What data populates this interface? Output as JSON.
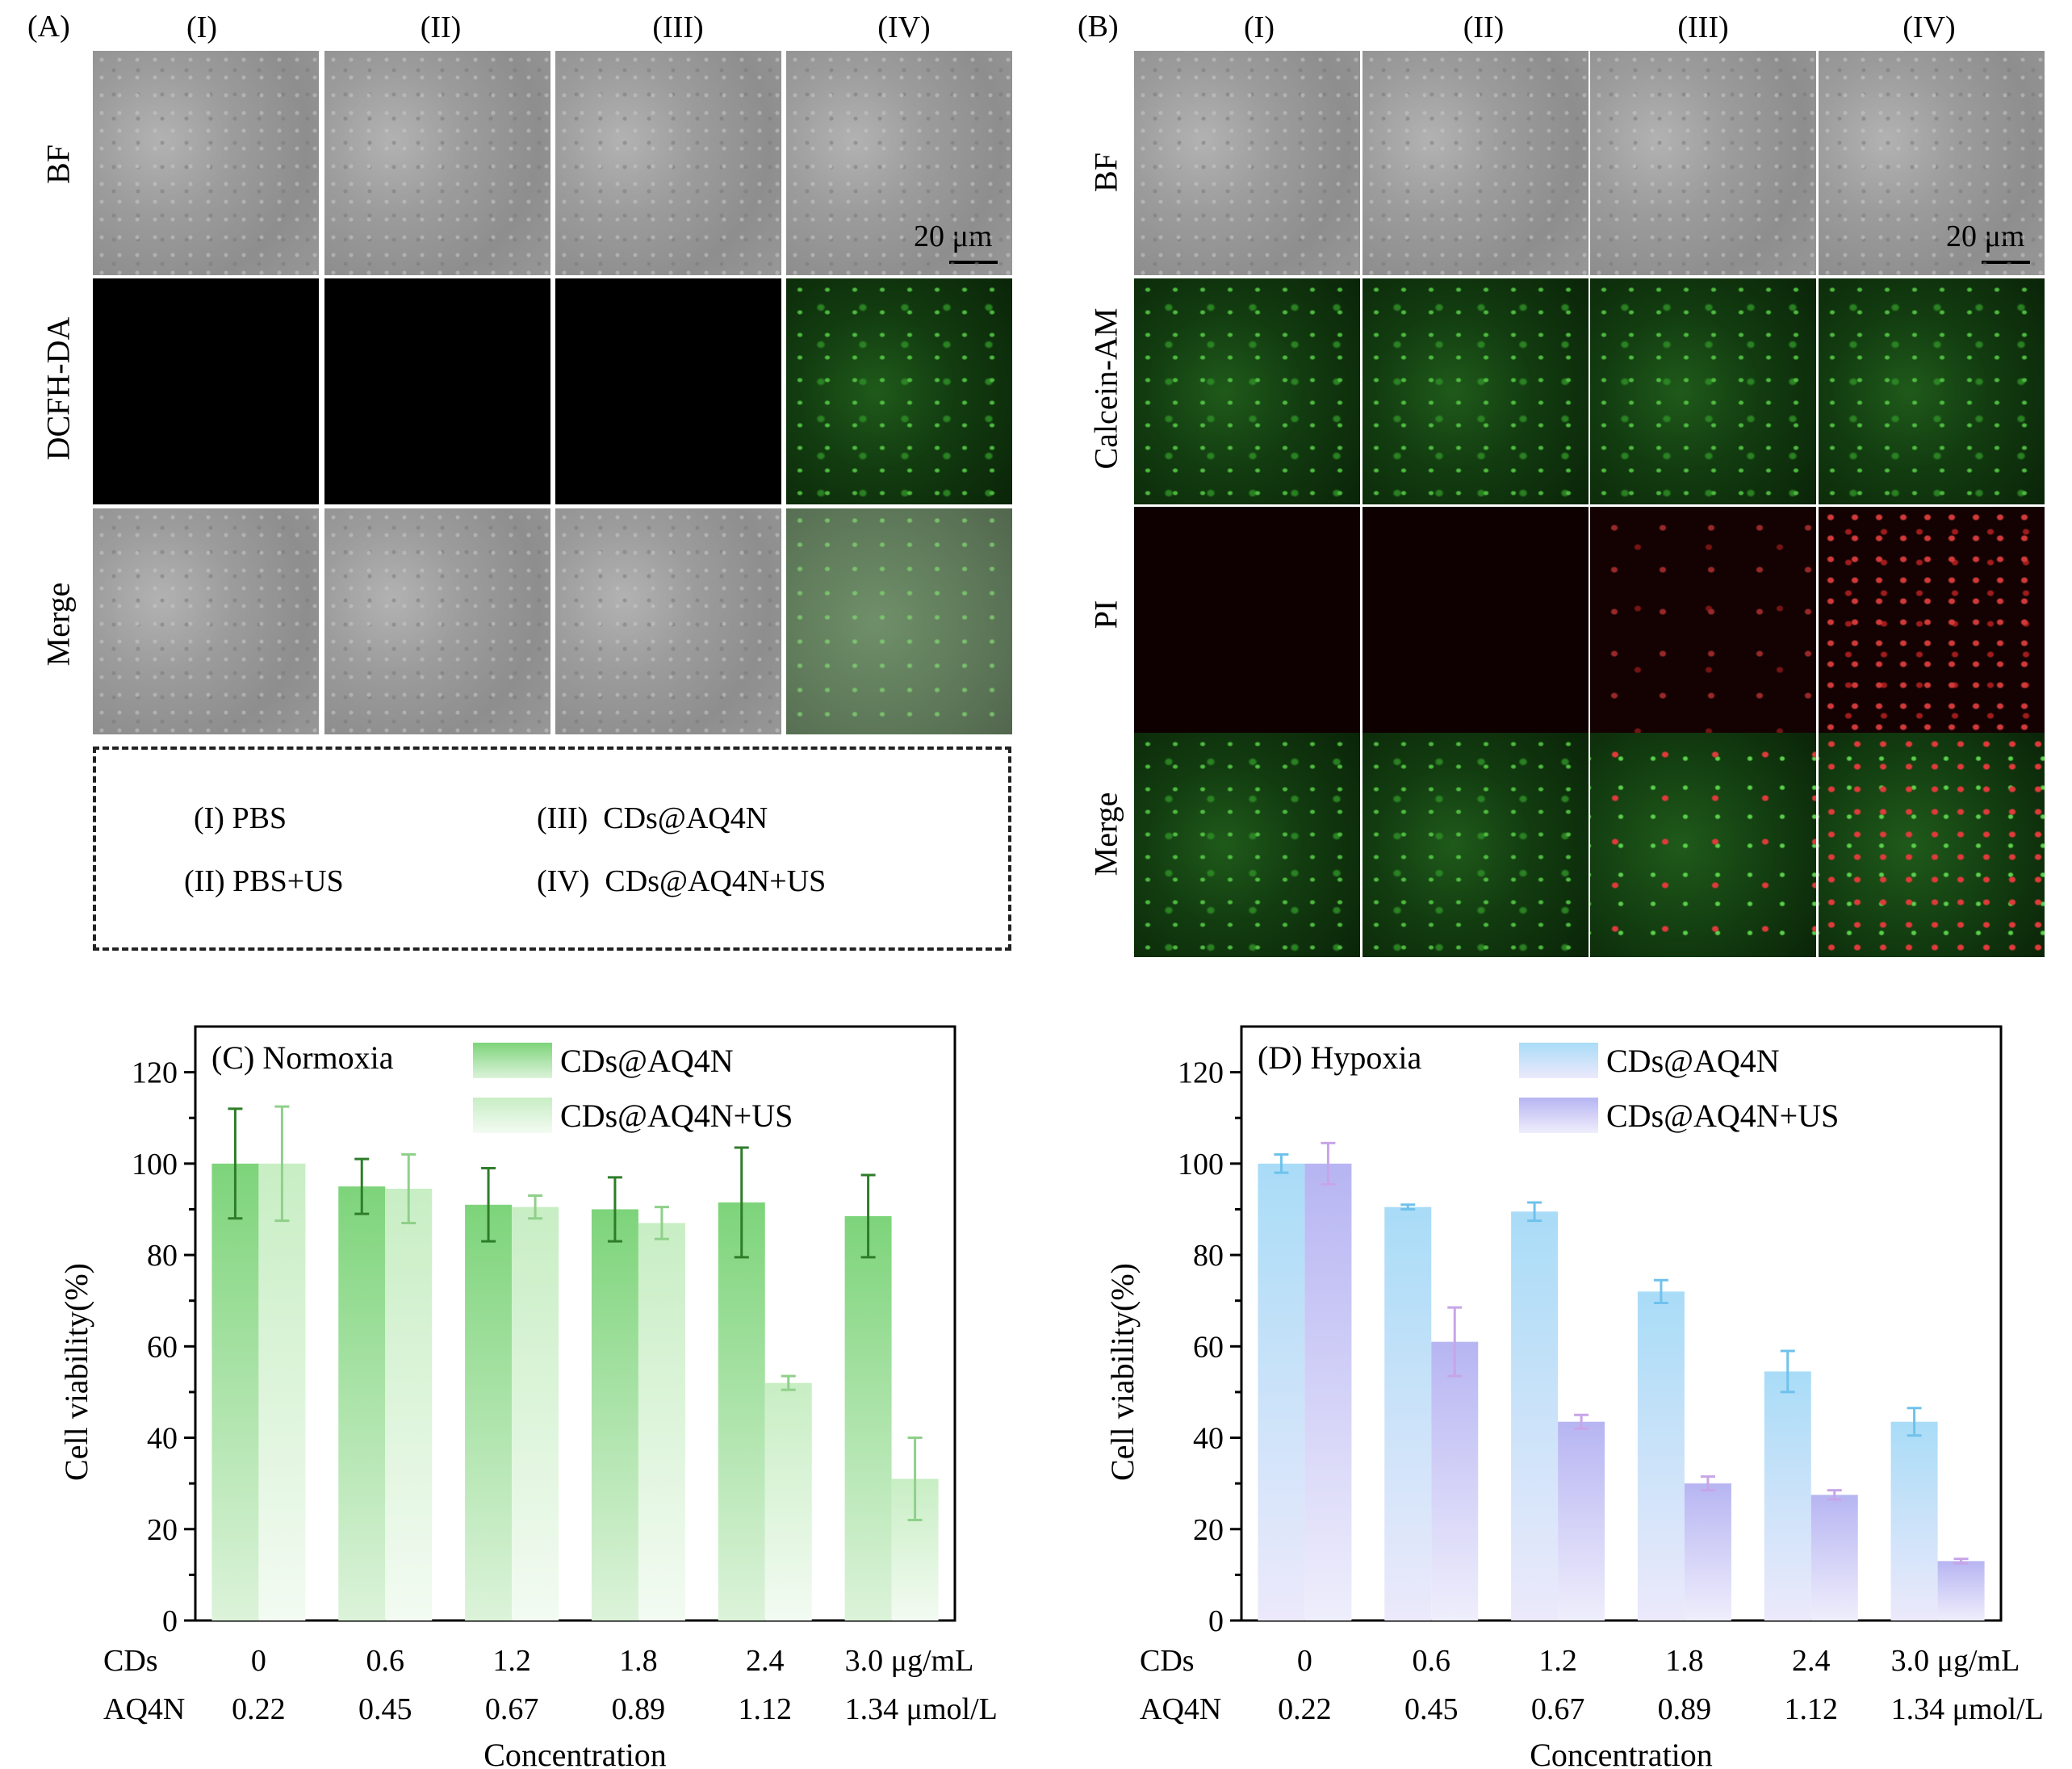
{
  "panel_A": {
    "letter": "(A)",
    "columns": [
      "(I)",
      "(II)",
      "(III)",
      "(IV)"
    ],
    "rows": [
      "BF",
      "DCFH-DA",
      "Merge"
    ],
    "scale_label": "20 μm",
    "legend": {
      "i": "(I) PBS",
      "ii": "(II) PBS+US",
      "iii": "(III)  CDs@AQ4N",
      "iv": "(IV)  CDs@AQ4N+US"
    }
  },
  "panel_B": {
    "letter": "(B)",
    "columns": [
      "(I)",
      "(II)",
      "(III)",
      "(IV)"
    ],
    "rows": [
      "BF",
      "Calcein-AM",
      "PI",
      "Merge"
    ],
    "scale_label": "20 μm"
  },
  "colors": {
    "normoxia_bar1": "#7dd47a",
    "normoxia_bar2": "#c8eec4",
    "normoxia_err1": "#2f7d2a",
    "normoxia_err2": "#8fd08a",
    "hypoxia_bar1": "#a9dcf7",
    "hypoxia_bar2": "#b7b5f2",
    "hypoxia_err1": "#6fc2ec",
    "hypoxia_err2": "#c7a5e8"
  },
  "chart_data": [
    {
      "type": "bar",
      "panel": "(C)",
      "title": "Normoxia",
      "ylabel": "Cell viability(%)",
      "xlabel": "Concentration",
      "ylim": [
        0,
        130
      ],
      "yticks": [
        0,
        20,
        40,
        60,
        80,
        100,
        120
      ],
      "row_labels": [
        "CDs",
        "AQ4N"
      ],
      "cds_labels": [
        "0",
        "0.6",
        "1.2",
        "1.8",
        "2.4",
        "3.0 μg/mL"
      ],
      "aq4n_labels": [
        "0.22",
        "0.45",
        "0.67",
        "0.89",
        "1.12",
        "1.34 μmol/L"
      ],
      "series": [
        {
          "name": "CDs@AQ4N",
          "values": [
            100,
            95,
            91,
            90,
            91.5,
            88.5
          ],
          "errors": [
            12,
            6,
            8,
            7,
            12,
            9
          ]
        },
        {
          "name": "CDs@AQ4N+US",
          "values": [
            100,
            94.5,
            90.5,
            87,
            52,
            31
          ],
          "errors": [
            12.5,
            7.5,
            2.5,
            3.5,
            1.5,
            9
          ]
        }
      ]
    },
    {
      "type": "bar",
      "panel": "(D)",
      "title": "Hypoxia",
      "ylabel": "Cell viability(%)",
      "xlabel": "Concentration",
      "ylim": [
        0,
        130
      ],
      "yticks": [
        0,
        20,
        40,
        60,
        80,
        100,
        120
      ],
      "row_labels": [
        "CDs",
        "AQ4N"
      ],
      "cds_labels": [
        "0",
        "0.6",
        "1.2",
        "1.8",
        "2.4",
        "3.0 μg/mL"
      ],
      "aq4n_labels": [
        "0.22",
        "0.45",
        "0.67",
        "0.89",
        "1.12",
        "1.34 μmol/L"
      ],
      "series": [
        {
          "name": "CDs@AQ4N",
          "values": [
            100,
            90.5,
            89.5,
            72,
            54.5,
            43.5
          ],
          "errors": [
            2,
            0.5,
            2,
            2.5,
            4.5,
            3
          ]
        },
        {
          "name": "CDs@AQ4N+US",
          "values": [
            100,
            61,
            43.5,
            30,
            27.5,
            13
          ],
          "errors": [
            4.5,
            7.5,
            1.5,
            1.5,
            1,
            0.5
          ]
        }
      ]
    }
  ]
}
